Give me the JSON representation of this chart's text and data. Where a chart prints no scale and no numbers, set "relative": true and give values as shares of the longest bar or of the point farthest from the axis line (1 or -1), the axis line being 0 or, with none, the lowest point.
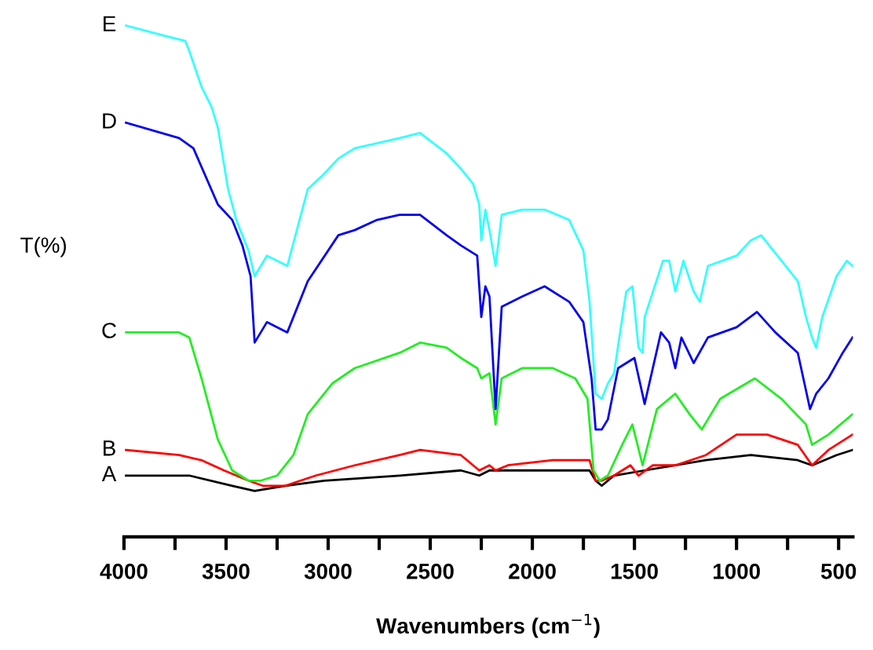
{
  "chart_data": {
    "type": "line",
    "relative": true,
    "xlabel": "Wavenumbers (cm$^{−1}$)",
    "ylabel": "T(%)",
    "xlim": [
      4000,
      430
    ],
    "xticks": [
      4000,
      {
        "value": 3750,
        "label": null
      },
      3500,
      {
        "value": 3250,
        "label": null
      },
      3000,
      {
        "value": 2750,
        "label": null
      },
      2500,
      {
        "value": 2250,
        "label": null
      },
      2000,
      {
        "value": 1750,
        "label": null
      },
      1500,
      {
        "value": 1250,
        "label": null
      },
      1000,
      {
        "value": 750,
        "label": null
      },
      500
    ],
    "grid": false,
    "legend": false,
    "series": [
      {
        "name": "A",
        "color": "#000000",
        "x": [
          3990,
          3680,
          3470,
          3360,
          3210,
          3020,
          2650,
          2350,
          2260,
          2210,
          1720,
          1690,
          1660,
          1600,
          1450,
          1150,
          930,
          700,
          630,
          510,
          432
        ],
        "values": [
          0.12,
          0.12,
          0.1,
          0.09,
          0.1,
          0.11,
          0.12,
          0.13,
          0.12,
          0.13,
          0.13,
          0.11,
          0.1,
          0.12,
          0.13,
          0.15,
          0.16,
          0.15,
          0.14,
          0.16,
          0.17
        ]
      },
      {
        "name": "B",
        "color": "#ff0000",
        "x": [
          3990,
          3730,
          3620,
          3510,
          3390,
          3320,
          3210,
          3060,
          2870,
          2650,
          2550,
          2350,
          2260,
          2210,
          2180,
          2120,
          1900,
          1720,
          1690,
          1660,
          1600,
          1520,
          1480,
          1410,
          1300,
          1150,
          1000,
          850,
          700,
          630,
          550,
          432
        ],
        "values": [
          0.17,
          0.16,
          0.15,
          0.13,
          0.11,
          0.1,
          0.1,
          0.12,
          0.14,
          0.16,
          0.17,
          0.16,
          0.13,
          0.14,
          0.13,
          0.14,
          0.15,
          0.15,
          0.11,
          0.11,
          0.12,
          0.14,
          0.12,
          0.14,
          0.14,
          0.16,
          0.2,
          0.2,
          0.18,
          0.14,
          0.17,
          0.2
        ]
      },
      {
        "name": "C",
        "color": "#22ee22",
        "x": [
          3990,
          3730,
          3680,
          3620,
          3540,
          3470,
          3390,
          3330,
          3250,
          3170,
          3100,
          2980,
          2870,
          2650,
          2550,
          2420,
          2350,
          2270,
          2250,
          2210,
          2180,
          2150,
          2050,
          1900,
          1790,
          1730,
          1700,
          1670,
          1630,
          1560,
          1510,
          1460,
          1390,
          1300,
          1230,
          1170,
          1080,
          910,
          780,
          660,
          630,
          550,
          432
        ],
        "values": [
          0.4,
          0.4,
          0.39,
          0.31,
          0.19,
          0.13,
          0.11,
          0.11,
          0.12,
          0.16,
          0.24,
          0.3,
          0.33,
          0.36,
          0.38,
          0.37,
          0.35,
          0.33,
          0.31,
          0.32,
          0.22,
          0.31,
          0.33,
          0.33,
          0.31,
          0.27,
          0.13,
          0.11,
          0.12,
          0.18,
          0.22,
          0.14,
          0.25,
          0.28,
          0.24,
          0.21,
          0.27,
          0.31,
          0.27,
          0.22,
          0.18,
          0.2,
          0.24
        ]
      },
      {
        "name": "D",
        "color": "#0000ee",
        "x": [
          3990,
          3730,
          3660,
          3540,
          3470,
          3420,
          3380,
          3360,
          3300,
          3200,
          3100,
          2950,
          2870,
          2760,
          2650,
          2550,
          2420,
          2350,
          2270,
          2250,
          2230,
          2210,
          2180,
          2150,
          2050,
          1940,
          1820,
          1750,
          1710,
          1690,
          1660,
          1630,
          1580,
          1500,
          1450,
          1370,
          1330,
          1300,
          1270,
          1210,
          1140,
          1000,
          900,
          810,
          700,
          640,
          610,
          550,
          480,
          432
        ],
        "values": [
          0.81,
          0.78,
          0.76,
          0.65,
          0.62,
          0.57,
          0.51,
          0.38,
          0.42,
          0.4,
          0.5,
          0.59,
          0.6,
          0.62,
          0.63,
          0.63,
          0.59,
          0.57,
          0.55,
          0.43,
          0.49,
          0.47,
          0.25,
          0.45,
          0.47,
          0.49,
          0.46,
          0.42,
          0.31,
          0.21,
          0.21,
          0.23,
          0.33,
          0.35,
          0.26,
          0.4,
          0.38,
          0.33,
          0.39,
          0.34,
          0.39,
          0.41,
          0.44,
          0.4,
          0.36,
          0.25,
          0.28,
          0.31,
          0.36,
          0.39
        ]
      },
      {
        "name": "E",
        "color": "#33ffff",
        "x": [
          3990,
          3800,
          3700,
          3680,
          3620,
          3570,
          3540,
          3490,
          3450,
          3420,
          3390,
          3360,
          3300,
          3200,
          3100,
          3020,
          2950,
          2870,
          2760,
          2650,
          2550,
          2420,
          2350,
          2290,
          2260,
          2250,
          2230,
          2210,
          2180,
          2150,
          2050,
          1940,
          1820,
          1750,
          1720,
          1690,
          1660,
          1630,
          1600,
          1540,
          1510,
          1480,
          1460,
          1450,
          1360,
          1330,
          1300,
          1260,
          1210,
          1180,
          1140,
          1000,
          930,
          880,
          780,
          700,
          660,
          630,
          610,
          580,
          510,
          460,
          432
        ],
        "values": [
          1.0,
          0.98,
          0.97,
          0.95,
          0.88,
          0.84,
          0.8,
          0.68,
          0.62,
          0.59,
          0.56,
          0.51,
          0.55,
          0.53,
          0.68,
          0.71,
          0.74,
          0.76,
          0.77,
          0.78,
          0.79,
          0.75,
          0.72,
          0.69,
          0.65,
          0.58,
          0.64,
          0.6,
          0.53,
          0.63,
          0.64,
          0.64,
          0.62,
          0.56,
          0.46,
          0.28,
          0.27,
          0.3,
          0.32,
          0.48,
          0.49,
          0.37,
          0.36,
          0.43,
          0.54,
          0.54,
          0.48,
          0.54,
          0.48,
          0.46,
          0.53,
          0.55,
          0.58,
          0.59,
          0.54,
          0.5,
          0.43,
          0.39,
          0.37,
          0.43,
          0.51,
          0.54,
          0.53
        ]
      }
    ]
  }
}
